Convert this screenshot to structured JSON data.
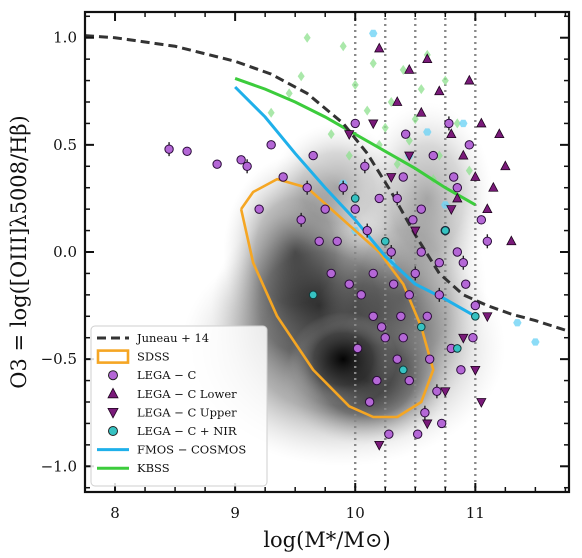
{
  "chart_data": {
    "type": "scatter",
    "xlabel": "log(M*/M⊙)",
    "ylabel": "O3 = log([OIII]λ5008/Hβ)",
    "xlim": [
      7.75,
      11.78
    ],
    "ylim": [
      -1.12,
      1.12
    ],
    "x_ticks": [
      8,
      9,
      10,
      11
    ],
    "y_ticks": [
      -1.0,
      -0.5,
      0.0,
      0.5,
      1.0
    ],
    "x_tick_labels": [
      "8",
      "9",
      "10",
      "11"
    ],
    "y_tick_labels": [
      "−1.0",
      "−0.5",
      "0.0",
      "0.5",
      "1.0"
    ],
    "vertical_dotted_lines": [
      10.0,
      10.25,
      10.5,
      10.75,
      11.0
    ],
    "legend_position": "lower-left",
    "legend": [
      {
        "label": "Juneau + 14",
        "style": "dashed-line",
        "color": "#333333"
      },
      {
        "label": "SDSS",
        "style": "rectangle",
        "color": "#f5a623"
      },
      {
        "label": "LEGA − C",
        "style": "circle",
        "color": "#b467d6"
      },
      {
        "label": "LEGA − C Lower",
        "style": "triangle-up",
        "color": "#7a1a7a"
      },
      {
        "label": "LEGA − C Upper",
        "style": "triangle-down",
        "color": "#7a1a7a"
      },
      {
        "label": "LEGA − C  +  NIR",
        "style": "circle",
        "color": "#36c2c2"
      },
      {
        "label": "FMOS − COSMOS",
        "style": "line",
        "color": "#1fb0ea"
      },
      {
        "label": "KBSS",
        "style": "line",
        "color": "#3ccc3c"
      }
    ],
    "series": [
      {
        "name": "Juneau + 14",
        "kind": "dashed-line",
        "color": "#333333",
        "x": [
          7.75,
          8.0,
          8.5,
          9.0,
          9.3,
          9.6,
          9.9,
          10.1,
          10.3,
          10.5,
          10.7,
          10.9,
          11.1,
          11.3,
          11.5,
          11.78
        ],
        "y": [
          1.01,
          1.0,
          0.96,
          0.89,
          0.83,
          0.74,
          0.6,
          0.46,
          0.28,
          0.08,
          -0.1,
          -0.2,
          -0.25,
          -0.29,
          -0.32,
          -0.37
        ]
      },
      {
        "name": "FMOS − COSMOS",
        "kind": "line",
        "color": "#1fb0ea",
        "x": [
          9.0,
          9.25,
          9.5,
          9.75,
          10.0,
          10.25,
          10.5,
          10.75,
          11.0
        ],
        "y": [
          0.77,
          0.63,
          0.46,
          0.3,
          0.15,
          -0.02,
          -0.15,
          -0.22,
          -0.3
        ]
      },
      {
        "name": "KBSS",
        "kind": "line",
        "color": "#3ccc3c",
        "x": [
          9.0,
          9.25,
          9.5,
          9.75,
          10.0,
          10.25,
          10.5,
          10.75,
          11.0
        ],
        "y": [
          0.81,
          0.76,
          0.7,
          0.63,
          0.55,
          0.47,
          0.39,
          0.3,
          0.22
        ]
      },
      {
        "name": "SDSS",
        "kind": "contour",
        "color": "#f5a623",
        "x": [
          9.05,
          9.15,
          9.35,
          9.6,
          9.8,
          10.0,
          10.2,
          10.4,
          10.55,
          10.65,
          10.55,
          10.35,
          10.15,
          9.95,
          9.65,
          9.35,
          9.15,
          9.05
        ],
        "y": [
          0.2,
          0.28,
          0.34,
          0.3,
          0.2,
          0.1,
          0.0,
          -0.15,
          -0.35,
          -0.55,
          -0.7,
          -0.77,
          -0.77,
          -0.72,
          -0.55,
          -0.3,
          -0.05,
          0.2
        ]
      },
      {
        "name": "KBSS points",
        "kind": "diamond-cloud",
        "color": "#3ccc3c",
        "x": [
          9.6,
          9.9,
          10.15,
          10.4,
          10.6,
          10.75,
          9.3,
          9.45,
          10.0,
          10.3,
          10.5,
          10.85,
          9.8,
          10.2,
          10.7,
          10.95,
          9.55,
          10.1,
          10.45,
          10.65,
          9.95,
          10.35,
          10.55,
          10.25
        ],
        "y": [
          1.0,
          0.96,
          0.88,
          0.85,
          0.92,
          0.8,
          0.65,
          0.74,
          0.78,
          0.7,
          0.62,
          0.6,
          0.55,
          0.5,
          0.45,
          0.38,
          0.82,
          0.66,
          0.52,
          0.34,
          0.45,
          0.41,
          0.76,
          0.58
        ]
      },
      {
        "name": "FMOS points",
        "kind": "hexagon-cloud",
        "color": "#6fd3f5",
        "x": [
          10.15,
          10.6,
          10.9,
          11.35,
          11.5,
          10.0,
          10.3,
          9.9,
          10.45,
          10.75
        ],
        "y": [
          1.02,
          0.56,
          0.6,
          -0.33,
          -0.42,
          0.1,
          -0.05,
          0.32,
          0.45,
          0.22
        ]
      },
      {
        "name": "LEGA − C",
        "kind": "circle",
        "color": "#b467d6",
        "x": [
          8.45,
          8.6,
          8.85,
          9.05,
          9.1,
          9.2,
          9.3,
          9.4,
          9.55,
          9.65,
          9.7,
          9.8,
          9.9,
          9.95,
          10.0,
          10.05,
          10.1,
          10.15,
          10.2,
          10.25,
          10.3,
          10.35,
          10.4,
          10.45,
          10.5,
          10.55,
          10.6,
          10.65,
          10.7,
          10.75,
          10.8,
          10.85,
          10.9,
          10.95,
          11.0,
          11.05,
          11.1,
          10.12,
          10.28,
          10.42,
          10.58,
          10.72,
          10.88,
          9.85,
          10.02,
          10.18,
          10.38,
          10.52,
          10.68,
          10.82,
          10.98,
          9.75,
          10.08,
          10.32,
          10.48,
          10.62,
          10.78,
          10.92,
          10.22,
          10.55,
          10.35,
          10.7,
          10.15,
          10.45,
          9.6,
          10.0,
          10.4,
          10.85
        ],
        "y": [
          0.48,
          0.47,
          0.41,
          0.43,
          0.4,
          0.2,
          0.5,
          0.35,
          0.15,
          0.45,
          0.05,
          -0.1,
          0.3,
          -0.15,
          0.6,
          -0.2,
          0.1,
          -0.3,
          0.25,
          -0.4,
          0.0,
          -0.5,
          0.35,
          -0.6,
          -0.1,
          0.2,
          -0.3,
          0.45,
          -0.2,
          0.1,
          -0.45,
          0.3,
          -0.05,
          0.5,
          -0.25,
          0.15,
          0.05,
          -0.7,
          -0.85,
          0.55,
          -0.75,
          -0.8,
          -0.55,
          0.05,
          -0.45,
          -0.6,
          -0.3,
          -0.85,
          -0.65,
          0.35,
          -0.4,
          0.2,
          0.4,
          -0.15,
          0.15,
          -0.5,
          0.6,
          -0.15,
          -0.35,
          0.0,
          0.25,
          -0.05,
          -0.1,
          -0.2,
          0.3,
          0.2,
          -0.4,
          0.0
        ]
      },
      {
        "name": "LEGA − C Lower",
        "kind": "triangle-up",
        "color": "#7a1a7a",
        "x": [
          10.2,
          10.45,
          10.6,
          10.7,
          10.8,
          10.9,
          11.0,
          11.1,
          11.2,
          11.3,
          10.55,
          10.85,
          11.05,
          11.25,
          10.35,
          10.95,
          11.15
        ],
        "y": [
          0.95,
          0.85,
          0.9,
          0.75,
          0.55,
          0.45,
          0.35,
          0.2,
          0.55,
          0.05,
          0.65,
          0.25,
          0.6,
          0.4,
          0.7,
          0.8,
          0.3
        ]
      },
      {
        "name": "LEGA − C Upper",
        "kind": "triangle-down",
        "color": "#7a1a7a",
        "x": [
          9.95,
          10.15,
          10.3,
          10.45,
          10.6,
          10.75,
          10.9,
          11.0,
          11.1,
          10.5,
          10.8,
          10.2,
          11.05
        ],
        "y": [
          0.55,
          0.6,
          0.35,
          0.45,
          -0.8,
          -0.65,
          -0.4,
          -0.55,
          -0.3,
          0.1,
          0.2,
          -0.9,
          -0.7
        ]
      },
      {
        "name": "LEGA − C  +  NIR",
        "kind": "circle",
        "color": "#36c2c2",
        "x": [
          9.65,
          10.0,
          10.25,
          10.4,
          10.55,
          10.75,
          10.85,
          11.0
        ],
        "y": [
          -0.2,
          0.25,
          0.05,
          -0.55,
          -0.35,
          0.1,
          -0.45,
          -0.3
        ]
      }
    ]
  }
}
